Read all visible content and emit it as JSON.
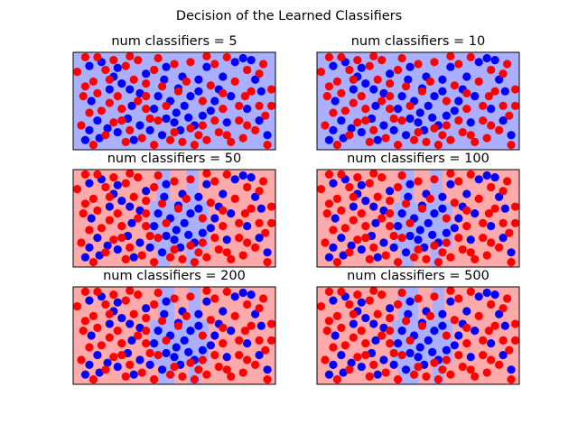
{
  "title": "Decision of the Learned Classifiers",
  "colors": {
    "class_a": "#0000ff",
    "class_b": "#ff0000",
    "region_a": "#aab0ff",
    "region_b": "#ffaaaa"
  },
  "chart_data": [
    {
      "type": "scatter",
      "title": "num classifiers = 5",
      "n_classifiers": 5,
      "xlim": [
        0,
        1
      ],
      "ylim": [
        0,
        1
      ],
      "xticks": false,
      "yticks": false,
      "background": "blue",
      "regions_b": []
    },
    {
      "type": "scatter",
      "title": "num classifiers = 10",
      "n_classifiers": 10,
      "xlim": [
        0,
        1
      ],
      "ylim": [
        0,
        1
      ],
      "xticks": false,
      "yticks": false,
      "background": "blue",
      "regions_b": []
    },
    {
      "type": "scatter",
      "title": "num classifiers = 50",
      "n_classifiers": 50,
      "xlim": [
        0,
        1
      ],
      "ylim": [
        0,
        1
      ],
      "xticks": false,
      "yticks": false,
      "background": "red",
      "regions_a": [
        [
          0.41,
          0.48,
          0.0,
          1.0
        ],
        [
          0.56,
          0.62,
          0.0,
          1.0
        ],
        [
          0.38,
          0.67,
          0.18,
          0.68
        ]
      ]
    },
    {
      "type": "scatter",
      "title": "num classifiers = 100",
      "n_classifiers": 100,
      "xlim": [
        0,
        1
      ],
      "ylim": [
        0,
        1
      ],
      "xticks": false,
      "yticks": false,
      "background": "red",
      "regions_a": [
        [
          0.41,
          0.48,
          0.0,
          1.0
        ],
        [
          0.56,
          0.62,
          0.0,
          1.0
        ],
        [
          0.38,
          0.67,
          0.2,
          0.66
        ]
      ]
    },
    {
      "type": "scatter",
      "title": "num classifiers = 200",
      "n_classifiers": 200,
      "xlim": [
        0,
        1
      ],
      "ylim": [
        0,
        1
      ],
      "xticks": false,
      "yticks": false,
      "background": "red",
      "regions_a": [
        [
          0.42,
          0.5,
          0.0,
          1.0
        ],
        [
          0.57,
          0.63,
          0.0,
          1.0
        ],
        [
          0.38,
          0.67,
          0.2,
          0.66
        ]
      ]
    },
    {
      "type": "scatter",
      "title": "num classifiers = 500",
      "n_classifiers": 500,
      "xlim": [
        0,
        1
      ],
      "ylim": [
        0,
        1
      ],
      "xticks": false,
      "yticks": false,
      "background": "red",
      "regions_a": [
        [
          0.4,
          0.5,
          0.0,
          1.0
        ],
        [
          0.57,
          0.63,
          0.0,
          1.0
        ],
        [
          0.37,
          0.67,
          0.22,
          0.66
        ]
      ]
    }
  ],
  "points": {
    "class_a": [
      [
        0.08,
        0.86
      ],
      [
        0.14,
        0.9
      ],
      [
        0.22,
        0.84
      ],
      [
        0.28,
        0.62
      ],
      [
        0.33,
        0.58
      ],
      [
        0.29,
        0.45
      ],
      [
        0.38,
        0.2
      ],
      [
        0.42,
        0.55
      ],
      [
        0.45,
        0.72
      ],
      [
        0.48,
        0.5
      ],
      [
        0.52,
        0.63
      ],
      [
        0.55,
        0.45
      ],
      [
        0.58,
        0.55
      ],
      [
        0.51,
        0.38
      ],
      [
        0.46,
        0.32
      ],
      [
        0.6,
        0.25
      ],
      [
        0.62,
        0.72
      ],
      [
        0.64,
        0.35
      ],
      [
        0.7,
        0.5
      ],
      [
        0.72,
        0.62
      ],
      [
        0.76,
        0.28
      ],
      [
        0.78,
        0.55
      ],
      [
        0.8,
        0.9
      ],
      [
        0.84,
        0.94
      ],
      [
        0.88,
        0.92
      ],
      [
        0.9,
        0.72
      ],
      [
        0.93,
        0.6
      ],
      [
        0.96,
        0.15
      ],
      [
        0.12,
        0.3
      ],
      [
        0.17,
        0.22
      ],
      [
        0.22,
        0.18
      ],
      [
        0.27,
        0.32
      ],
      [
        0.33,
        0.25
      ],
      [
        0.09,
        0.5
      ],
      [
        0.13,
        0.12
      ],
      [
        0.18,
        0.62
      ],
      [
        0.24,
        0.68
      ],
      [
        0.36,
        0.78
      ],
      [
        0.4,
        0.42
      ],
      [
        0.54,
        0.75
      ],
      [
        0.66,
        0.85
      ],
      [
        0.06,
        0.1
      ],
      [
        0.08,
        0.2
      ],
      [
        0.44,
        0.15
      ],
      [
        0.53,
        0.2
      ],
      [
        0.57,
        0.33
      ],
      [
        0.68,
        0.4
      ],
      [
        0.74,
        0.75
      ],
      [
        0.2,
        0.75
      ],
      [
        0.3,
        0.1
      ],
      [
        0.46,
        0.85
      ],
      [
        0.62,
        0.6
      ],
      [
        0.86,
        0.42
      ],
      [
        0.92,
        0.3
      ],
      [
        0.5,
        0.28
      ]
    ],
    "class_b": [
      [
        0.05,
        0.55
      ],
      [
        0.1,
        0.7
      ],
      [
        0.16,
        0.82
      ],
      [
        0.2,
        0.92
      ],
      [
        0.26,
        0.86
      ],
      [
        0.32,
        0.92
      ],
      [
        0.36,
        0.68
      ],
      [
        0.4,
        0.82
      ],
      [
        0.5,
        0.88
      ],
      [
        0.58,
        0.9
      ],
      [
        0.7,
        0.88
      ],
      [
        0.76,
        0.95
      ],
      [
        0.86,
        0.82
      ],
      [
        0.94,
        0.88
      ],
      [
        0.98,
        0.62
      ],
      [
        0.92,
        0.45
      ],
      [
        0.95,
        0.35
      ],
      [
        0.85,
        0.55
      ],
      [
        0.82,
        0.3
      ],
      [
        0.72,
        0.18
      ],
      [
        0.66,
        0.1
      ],
      [
        0.6,
        0.05
      ],
      [
        0.54,
        0.08
      ],
      [
        0.48,
        0.1
      ],
      [
        0.4,
        0.05
      ],
      [
        0.34,
        0.12
      ],
      [
        0.28,
        0.2
      ],
      [
        0.24,
        0.42
      ],
      [
        0.18,
        0.48
      ],
      [
        0.12,
        0.58
      ],
      [
        0.08,
        0.38
      ],
      [
        0.04,
        0.25
      ],
      [
        0.14,
        0.4
      ],
      [
        0.22,
        0.55
      ],
      [
        0.3,
        0.72
      ],
      [
        0.36,
        0.42
      ],
      [
        0.42,
        0.3
      ],
      [
        0.44,
        0.65
      ],
      [
        0.56,
        0.7
      ],
      [
        0.64,
        0.5
      ],
      [
        0.68,
        0.66
      ],
      [
        0.74,
        0.42
      ],
      [
        0.8,
        0.7
      ],
      [
        0.88,
        0.6
      ],
      [
        0.9,
        0.2
      ],
      [
        0.96,
        0.05
      ],
      [
        0.84,
        0.12
      ],
      [
        0.78,
        0.08
      ],
      [
        0.7,
        0.3
      ],
      [
        0.62,
        0.15
      ],
      [
        0.5,
        0.18
      ],
      [
        0.38,
        0.32
      ],
      [
        0.26,
        0.08
      ],
      [
        0.2,
        0.28
      ],
      [
        0.1,
        0.05
      ],
      [
        0.02,
        0.8
      ],
      [
        0.06,
        0.95
      ],
      [
        0.32,
        0.5
      ],
      [
        0.46,
        0.45
      ],
      [
        0.58,
        0.22
      ],
      [
        0.74,
        0.58
      ],
      [
        0.82,
        0.45
      ],
      [
        0.98,
        0.45
      ],
      [
        0.92,
        0.78
      ],
      [
        0.18,
        0.72
      ],
      [
        0.28,
        0.96
      ],
      [
        0.42,
        0.94
      ],
      [
        0.66,
        0.96
      ],
      [
        0.12,
        0.95
      ],
      [
        0.52,
        0.6
      ],
      [
        0.36,
        0.55
      ],
      [
        0.24,
        0.3
      ],
      [
        0.86,
        0.25
      ],
      [
        0.76,
        0.15
      ],
      [
        0.64,
        0.25
      ],
      [
        0.16,
        0.15
      ],
      [
        0.06,
        0.65
      ]
    ]
  }
}
